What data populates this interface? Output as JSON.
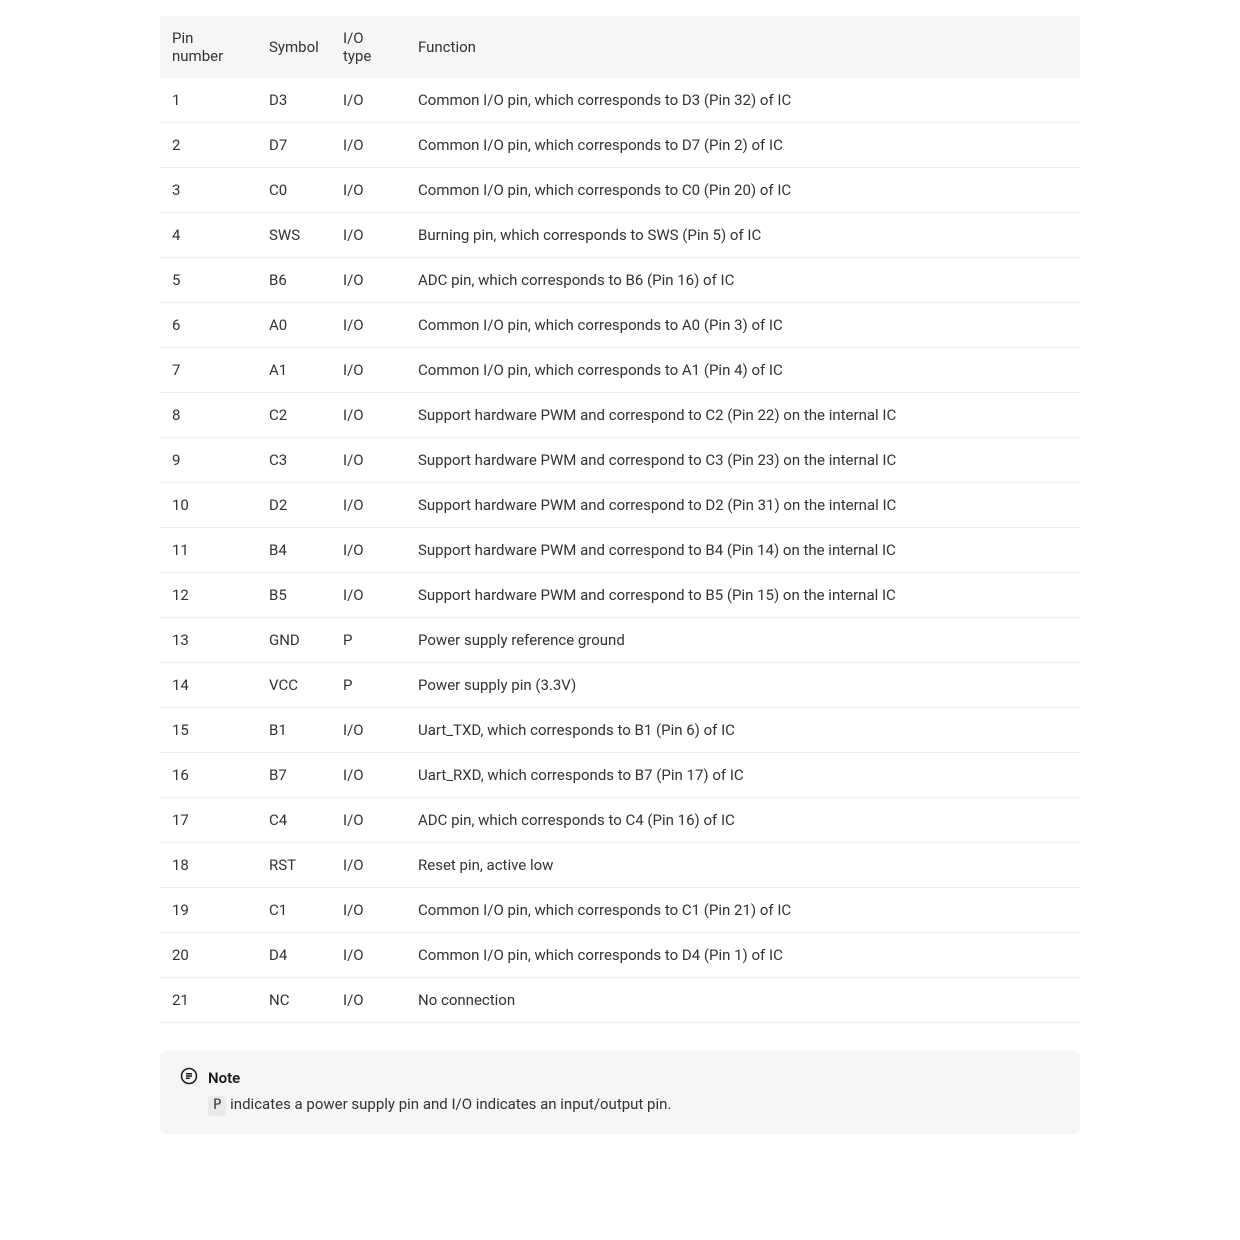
{
  "table": {
    "columns": [
      "Pin number",
      "Symbol",
      "I/O type",
      "Function"
    ],
    "rows": [
      [
        "1",
        "D3",
        "I/O",
        "Common I/O pin, which corresponds to D3 (Pin 32) of IC"
      ],
      [
        "2",
        "D7",
        "I/O",
        "Common I/O pin, which corresponds to D7 (Pin 2) of IC"
      ],
      [
        "3",
        "C0",
        "I/O",
        "Common I/O pin, which corresponds to C0 (Pin 20) of IC"
      ],
      [
        "4",
        "SWS",
        "I/O",
        "Burning pin, which corresponds to SWS (Pin 5) of IC"
      ],
      [
        "5",
        "B6",
        "I/O",
        "ADC pin, which corresponds to B6 (Pin 16) of IC"
      ],
      [
        "6",
        "A0",
        "I/O",
        "Common I/O pin, which corresponds to A0 (Pin 3) of IC"
      ],
      [
        "7",
        "A1",
        "I/O",
        "Common I/O pin, which corresponds to A1 (Pin 4) of IC"
      ],
      [
        "8",
        "C2",
        "I/O",
        "Support hardware PWM and correspond to C2 (Pin 22) on the internal IC"
      ],
      [
        "9",
        "C3",
        "I/O",
        "Support hardware PWM and correspond to C3 (Pin 23) on the internal IC"
      ],
      [
        "10",
        "D2",
        "I/O",
        "Support hardware PWM and correspond to D2 (Pin 31) on the internal IC"
      ],
      [
        "11",
        "B4",
        "I/O",
        "Support hardware PWM and correspond to B4 (Pin 14) on the internal IC"
      ],
      [
        "12",
        "B5",
        "I/O",
        "Support hardware PWM and correspond to B5 (Pin 15) on the internal IC"
      ],
      [
        "13",
        "GND",
        "P",
        "Power supply reference ground"
      ],
      [
        "14",
        "VCC",
        "P",
        "Power supply pin (3.3V)"
      ],
      [
        "15",
        "B1",
        "I/O",
        "Uart_TXD, which corresponds to B1 (Pin 6) of IC"
      ],
      [
        "16",
        "B7",
        "I/O",
        "Uart_RXD, which corresponds to B7 (Pin 17) of IC"
      ],
      [
        "17",
        "C4",
        "I/O",
        "ADC pin, which corresponds to C4 (Pin 16) of IC"
      ],
      [
        "18",
        "RST",
        "I/O",
        "Reset pin, active low"
      ],
      [
        "19",
        "C1",
        "I/O",
        "Common I/O pin, which corresponds to C1 (Pin 21) of IC"
      ],
      [
        "20",
        "D4",
        "I/O",
        "Common I/O pin, which corresponds to D4 (Pin 1) of IC"
      ],
      [
        "21",
        "NC",
        "I/O",
        "No connection"
      ]
    ]
  },
  "note": {
    "title": "Note",
    "chip": "P",
    "text_after": " indicates a power supply pin and I/O indicates an input/output pin."
  },
  "colors": {
    "header_bg": "#f5f6f7",
    "row_border": "#ececec",
    "note_bg": "#f5f6f7",
    "chip_bg": "#e8e9ea",
    "text": "#333333"
  }
}
